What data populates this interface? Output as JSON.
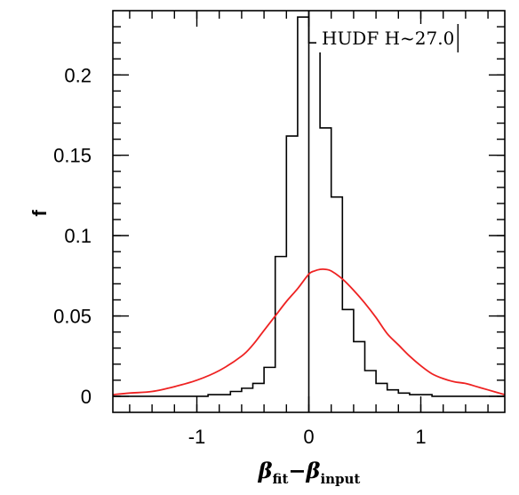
{
  "chart_data": {
    "type": "line",
    "annotation": "HUDF H~27.0",
    "ylabel": "f",
    "xlabel": {
      "sym1": "β",
      "sub1": "fit",
      "op": "−",
      "sym2": "β",
      "sub2": "input"
    },
    "xlim": [
      -1.75,
      1.75
    ],
    "ylim": [
      -0.01,
      0.24
    ],
    "x_ticks": [
      {
        "value": -1,
        "label": "-1"
      },
      {
        "value": 0,
        "label": "0"
      },
      {
        "value": 1,
        "label": "1"
      }
    ],
    "y_ticks": [
      {
        "value": 0,
        "label": "0"
      },
      {
        "value": 0.05,
        "label": "0.05"
      },
      {
        "value": 0.1,
        "label": "0.1"
      },
      {
        "value": 0.15,
        "label": "0.15"
      },
      {
        "value": 0.2,
        "label": "0.2"
      }
    ],
    "vertical_line_x": 0,
    "colors": {
      "histogram": "#000000",
      "curve": "#ee2222",
      "axes": "#000000"
    },
    "series": [
      {
        "kind": "step-histogram",
        "bin_edges": [
          -1.75,
          -1.6,
          -1.5,
          -1.4,
          -1.3,
          -1.2,
          -1.1,
          -1.0,
          -0.9,
          -0.8,
          -0.7,
          -0.6,
          -0.5,
          -0.4,
          -0.3,
          -0.2,
          -0.1,
          0.0,
          0.1,
          0.2,
          0.3,
          0.4,
          0.5,
          0.6,
          0.7,
          0.8,
          0.9,
          1.0,
          1.1,
          1.2,
          1.3,
          1.4,
          1.5,
          1.6,
          1.75
        ],
        "values": [
          0,
          0,
          0,
          0,
          0,
          0,
          0,
          0,
          0.001,
          0.001,
          0.003,
          0.005,
          0.008,
          0.018,
          0.087,
          0.162,
          0.236,
          0.22,
          0.167,
          0.124,
          0.054,
          0.034,
          0.016,
          0.008,
          0.004,
          0.002,
          0.001,
          0.001,
          0,
          0,
          0,
          0,
          0,
          0
        ]
      },
      {
        "kind": "curve",
        "x": [
          -1.75,
          -1.6,
          -1.4,
          -1.2,
          -1.0,
          -0.8,
          -0.6,
          -0.5,
          -0.4,
          -0.3,
          -0.2,
          -0.1,
          0.0,
          0.05,
          0.1,
          0.15,
          0.2,
          0.3,
          0.4,
          0.5,
          0.6,
          0.7,
          0.8,
          0.9,
          1.0,
          1.1,
          1.2,
          1.3,
          1.4,
          1.5,
          1.6,
          1.75
        ],
        "y": [
          0.001,
          0.002,
          0.003,
          0.006,
          0.01,
          0.016,
          0.025,
          0.032,
          0.041,
          0.05,
          0.059,
          0.067,
          0.076,
          0.078,
          0.079,
          0.079,
          0.078,
          0.073,
          0.066,
          0.058,
          0.049,
          0.039,
          0.032,
          0.025,
          0.019,
          0.014,
          0.011,
          0.009,
          0.008,
          0.006,
          0.004,
          0.001
        ]
      }
    ]
  }
}
